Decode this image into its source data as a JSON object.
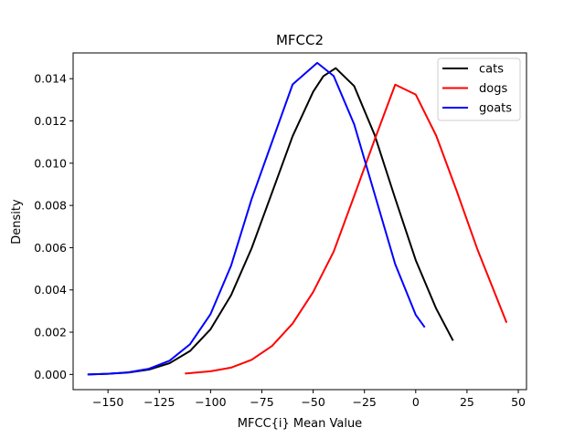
{
  "chart_data": {
    "type": "line",
    "title": "MFCC2",
    "xlabel": "MFCC{i} Mean Value",
    "ylabel": "Density",
    "xlim": [
      -167,
      54
    ],
    "ylim": [
      -0.00072,
      0.01522
    ],
    "xticks": [
      -150,
      -125,
      -100,
      -75,
      -50,
      -25,
      0,
      25,
      50
    ],
    "yticks": [
      0.0,
      0.002,
      0.004,
      0.006,
      0.008,
      0.01,
      0.012,
      0.014
    ],
    "xtick_labels": [
      "−150",
      "−125",
      "−100",
      "−75",
      "−50",
      "−25",
      "0",
      "25",
      "50"
    ],
    "ytick_labels": [
      "0.000",
      "0.002",
      "0.004",
      "0.006",
      "0.008",
      "0.010",
      "0.012",
      "0.014"
    ],
    "grid": false,
    "legend_position": "top-right",
    "series": [
      {
        "name": "cats",
        "color": "#000000",
        "x": [
          -159.7,
          -150,
          -140,
          -130,
          -120,
          -110,
          -100,
          -90,
          -80,
          -70,
          -60,
          -50,
          -45,
          -39,
          -30,
          -20,
          -10,
          0,
          10,
          18.2
        ],
        "y": [
          0.0,
          3e-05,
          9e-05,
          0.00023,
          0.00053,
          0.00111,
          0.00214,
          0.00375,
          0.00597,
          0.00862,
          0.01128,
          0.01338,
          0.01412,
          0.0145,
          0.01365,
          0.01133,
          0.00833,
          0.00541,
          0.00311,
          0.0016
        ]
      },
      {
        "name": "dogs",
        "color": "#ff0000",
        "x": [
          -112.5,
          -100,
          -90,
          -80,
          -70,
          -60,
          -50,
          -40,
          -30,
          -20,
          -10,
          0,
          10,
          20,
          30,
          44.3
        ],
        "y": [
          4e-05,
          0.00015,
          0.00032,
          0.00069,
          0.00135,
          0.00241,
          0.0039,
          0.00581,
          0.00845,
          0.01112,
          0.01372,
          0.01325,
          0.0113,
          0.00868,
          0.00594,
          0.00245
        ]
      },
      {
        "name": "goats",
        "color": "#0000ff",
        "x": [
          -160,
          -150,
          -140,
          -130,
          -120,
          -110,
          -100,
          -90,
          -80,
          -70,
          -60,
          -48,
          -40,
          -30,
          -20,
          -10,
          0,
          4.4
        ],
        "y": [
          0.0,
          3e-05,
          0.0001,
          0.00027,
          0.00065,
          0.00143,
          0.00286,
          0.00515,
          0.0083,
          0.01102,
          0.01373,
          0.01475,
          0.01413,
          0.01184,
          0.00853,
          0.00522,
          0.00282,
          0.00223
        ]
      }
    ]
  }
}
